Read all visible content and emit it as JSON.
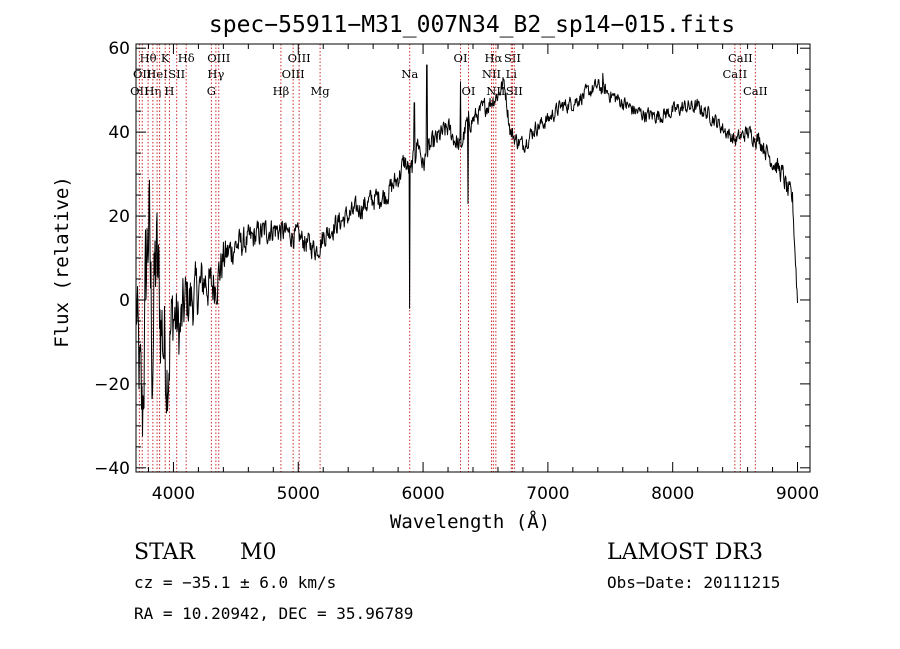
{
  "chart_data": {
    "type": "line",
    "title": "spec−55911−M31_007N34_B2_sp14−015.fits",
    "xlabel": "Wavelength (Å)",
    "ylabel": "Flux (relative)",
    "xlim": [
      3700,
      9100
    ],
    "ylim": [
      -41,
      61
    ],
    "x_ticks": [
      4000,
      5000,
      6000,
      7000,
      8000,
      9000
    ],
    "x_tick_labels": [
      "4000",
      "5000",
      "6000",
      "7000",
      "8000",
      "9000"
    ],
    "y_ticks": [
      -40,
      -20,
      0,
      20,
      40,
      60
    ],
    "y_tick_labels": [
      "−40",
      "−20",
      "0",
      "20",
      "40",
      "60"
    ],
    "series": [
      {
        "name": "flux",
        "color": "#000000",
        "anchors": [
          [
            3700,
            0
          ],
          [
            3720,
            -15
          ],
          [
            3750,
            -30
          ],
          [
            3780,
            5
          ],
          [
            3800,
            20
          ],
          [
            3830,
            -12
          ],
          [
            3860,
            10
          ],
          [
            3900,
            -5
          ],
          [
            3950,
            -15
          ],
          [
            4000,
            -3
          ],
          [
            4050,
            -8
          ],
          [
            4100,
            0
          ],
          [
            4150,
            0
          ],
          [
            4200,
            2
          ],
          [
            4250,
            5
          ],
          [
            4300,
            3
          ],
          [
            4350,
            5
          ],
          [
            4400,
            10
          ],
          [
            4500,
            13
          ],
          [
            4600,
            14
          ],
          [
            4700,
            16
          ],
          [
            4800,
            17
          ],
          [
            4900,
            16
          ],
          [
            5000,
            15
          ],
          [
            5100,
            13
          ],
          [
            5150,
            12
          ],
          [
            5200,
            15
          ],
          [
            5300,
            18
          ],
          [
            5400,
            20
          ],
          [
            5500,
            22
          ],
          [
            5600,
            24
          ],
          [
            5700,
            25
          ],
          [
            5800,
            29
          ],
          [
            5850,
            33
          ],
          [
            5900,
            30
          ],
          [
            5960,
            38
          ],
          [
            6000,
            32
          ],
          [
            6050,
            36
          ],
          [
            6100,
            38
          ],
          [
            6200,
            41
          ],
          [
            6300,
            36
          ],
          [
            6350,
            42
          ],
          [
            6400,
            43
          ],
          [
            6500,
            46
          ],
          [
            6600,
            49
          ],
          [
            6650,
            52
          ],
          [
            6700,
            40
          ],
          [
            6750,
            38
          ],
          [
            6800,
            37
          ],
          [
            6900,
            41
          ],
          [
            7000,
            43
          ],
          [
            7100,
            46
          ],
          [
            7200,
            47
          ],
          [
            7300,
            49
          ],
          [
            7400,
            51
          ],
          [
            7500,
            49
          ],
          [
            7600,
            47
          ],
          [
            7700,
            45
          ],
          [
            7800,
            44
          ],
          [
            7900,
            44
          ],
          [
            8000,
            45
          ],
          [
            8100,
            46
          ],
          [
            8200,
            46
          ],
          [
            8300,
            44
          ],
          [
            8400,
            41
          ],
          [
            8500,
            38
          ],
          [
            8600,
            40
          ],
          [
            8700,
            38
          ],
          [
            8800,
            33
          ],
          [
            8880,
            30
          ],
          [
            8920,
            26
          ],
          [
            8960,
            24
          ],
          [
            9000,
            0
          ]
        ],
        "noise": [
          [
            3700,
            14
          ],
          [
            3800,
            22
          ],
          [
            3900,
            18
          ],
          [
            4000,
            11
          ],
          [
            4100,
            9
          ],
          [
            4200,
            7
          ],
          [
            4350,
            6
          ],
          [
            4500,
            4
          ],
          [
            5000,
            3
          ],
          [
            5800,
            3
          ],
          [
            6000,
            3
          ],
          [
            6500,
            2.5
          ],
          [
            7000,
            2
          ],
          [
            8500,
            2
          ],
          [
            8800,
            2.5
          ],
          [
            9000,
            3
          ]
        ],
        "spikes": [
          [
            5892,
            -2
          ],
          [
            5930,
            47
          ],
          [
            6030,
            56
          ],
          [
            6300,
            52
          ],
          [
            6360,
            23
          ],
          [
            7440,
            54
          ]
        ]
      }
    ],
    "lines": [
      {
        "wl": 3727,
        "row": 2,
        "label": "OII"
      },
      {
        "wl": 3797,
        "row": 0,
        "label": "Hθ"
      },
      {
        "wl": 3750,
        "row": 1,
        "label": "OII"
      },
      {
        "wl": 3835,
        "row": 2,
        "label": "Hη"
      },
      {
        "wl": 3869,
        "row": 1,
        "label": "HeI"
      },
      {
        "wl": 3889,
        "row": 0,
        "label": ""
      },
      {
        "wl": 3934,
        "row": 0,
        "label": "K"
      },
      {
        "wl": 3968,
        "row": 2,
        "label": "H"
      },
      {
        "wl": 4026,
        "row": 1,
        "label": "SII"
      },
      {
        "wl": 4102,
        "row": 0,
        "label": "Hδ"
      },
      {
        "wl": 4304,
        "row": 2,
        "label": "G"
      },
      {
        "wl": 4340,
        "row": 1,
        "label": "Hγ"
      },
      {
        "wl": 4363,
        "row": 0,
        "label": "OIII"
      },
      {
        "wl": 4861,
        "row": 2,
        "label": "Hβ"
      },
      {
        "wl": 4959,
        "row": 1,
        "label": "OIII"
      },
      {
        "wl": 5007,
        "row": 0,
        "label": "OIII"
      },
      {
        "wl": 5175,
        "row": 2,
        "label": "Mg"
      },
      {
        "wl": 5893,
        "row": 1,
        "label": "Na"
      },
      {
        "wl": 6300,
        "row": 0,
        "label": "OI"
      },
      {
        "wl": 6364,
        "row": 2,
        "label": "OI"
      },
      {
        "wl": 6548,
        "row": 1,
        "label": "NII"
      },
      {
        "wl": 6563,
        "row": 0,
        "label": "Hα"
      },
      {
        "wl": 6583,
        "row": 2,
        "label": "NII"
      },
      {
        "wl": 6707,
        "row": 1,
        "label": "Li"
      },
      {
        "wl": 6716,
        "row": 0,
        "label": "SII"
      },
      {
        "wl": 6731,
        "row": 2,
        "label": "SII"
      },
      {
        "wl": 8498,
        "row": 1,
        "label": "CaII"
      },
      {
        "wl": 8542,
        "row": 0,
        "label": "CaII"
      },
      {
        "wl": 8662,
        "row": 2,
        "label": "CaII"
      }
    ],
    "line_color": "#cc2a2a"
  },
  "info": {
    "object_class": "STAR",
    "subclass": "M0",
    "survey": "LAMOST DR3",
    "cz": "cz = −35.1 ± 6.0 km/s",
    "obs_date": "Obs−Date: 20111215",
    "coords": "RA =  10.20942, DEC =  35.96789"
  }
}
